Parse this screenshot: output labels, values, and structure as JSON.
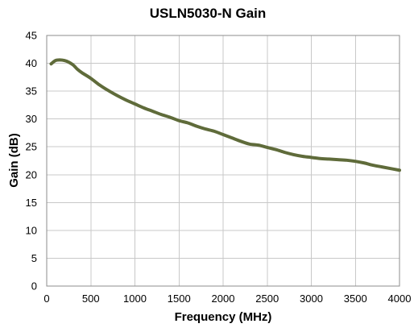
{
  "chart_data": {
    "type": "line",
    "title": "USLN5030-N Gain",
    "xlabel": "Frequency (MHz)",
    "ylabel": "Gain (dB)",
    "xlim": [
      0,
      4000
    ],
    "ylim": [
      0,
      45
    ],
    "xticks": [
      0,
      500,
      1000,
      1500,
      2000,
      2500,
      3000,
      3500,
      4000
    ],
    "yticks": [
      0,
      5,
      10,
      15,
      20,
      25,
      30,
      35,
      40,
      45
    ],
    "grid": true,
    "legend": "none",
    "series_color": "#5f6b3a",
    "series": [
      {
        "x": [
          50,
          100,
          150,
          200,
          250,
          300,
          350,
          400,
          500,
          600,
          700,
          800,
          900,
          1000,
          1100,
          1200,
          1300,
          1400,
          1500,
          1600,
          1700,
          1800,
          1900,
          2000,
          2100,
          2200,
          2300,
          2400,
          2500,
          2600,
          2700,
          2800,
          2900,
          3000,
          3100,
          3200,
          3300,
          3400,
          3500,
          3600,
          3700,
          3800,
          3900,
          4000
        ],
        "y": [
          39.9,
          40.5,
          40.6,
          40.5,
          40.2,
          39.7,
          38.9,
          38.3,
          37.3,
          36.1,
          35.1,
          34.2,
          33.4,
          32.7,
          32.0,
          31.4,
          30.8,
          30.3,
          29.7,
          29.3,
          28.7,
          28.2,
          27.8,
          27.2,
          26.6,
          26.0,
          25.5,
          25.3,
          24.9,
          24.5,
          24.0,
          23.6,
          23.3,
          23.1,
          22.9,
          22.8,
          22.7,
          22.6,
          22.4,
          22.1,
          21.7,
          21.4,
          21.1,
          20.8
        ]
      }
    ]
  }
}
